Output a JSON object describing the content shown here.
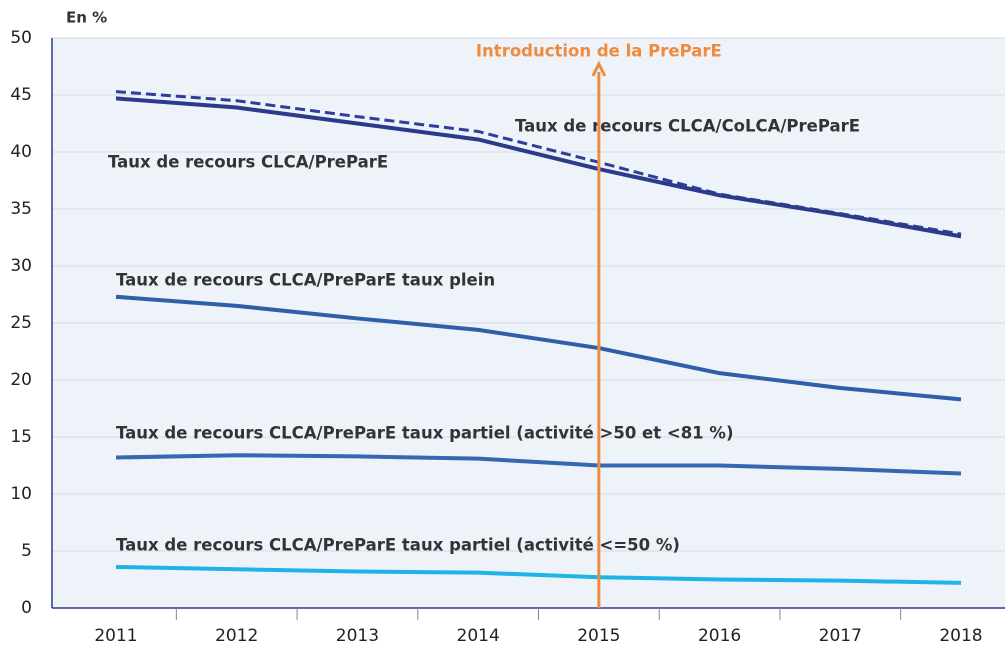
{
  "chart_data": {
    "type": "line",
    "y_label": "En %",
    "categories": [
      "2011",
      "2012",
      "2013",
      "2014",
      "2015",
      "2016",
      "2017",
      "2018"
    ],
    "series": [
      {
        "name": "Taux de recours CLCA/CoLCA/PreParE",
        "color": "#2e3f9b",
        "dashed": true,
        "values": [
          45.3,
          44.5,
          43.1,
          41.8,
          39.1,
          36.3,
          34.6,
          32.8
        ]
      },
      {
        "name": "Taux de recours CLCA/PreParE",
        "color": "#2b3a8c",
        "dashed": false,
        "values": [
          44.7,
          43.9,
          42.5,
          41.1,
          38.5,
          36.2,
          34.5,
          32.6
        ]
      },
      {
        "name": "Taux de recours CLCA/PreParE taux plein",
        "color": "#2f5fa8",
        "dashed": false,
        "values": [
          27.3,
          26.5,
          25.4,
          24.4,
          22.8,
          20.6,
          19.3,
          18.3
        ]
      },
      {
        "name": "Taux de recours CLCA/PreParE taux partiel (activité >50 et <81 %)",
        "color": "#3568b0",
        "dashed": false,
        "values": [
          13.2,
          13.4,
          13.3,
          13.1,
          12.5,
          12.5,
          12.2,
          11.8
        ]
      },
      {
        "name": "Taux de recours CLCA/PreParE taux partiel (activité <=50 %)",
        "color": "#1eb4e6",
        "dashed": false,
        "values": [
          3.6,
          3.4,
          3.2,
          3.1,
          2.7,
          2.5,
          2.4,
          2.2
        ]
      }
    ],
    "annotation": {
      "text": "Introduction de la PreParE",
      "category": "2015",
      "color": "#f08a3c"
    },
    "ylim": [
      0,
      50
    ],
    "yticks": [
      0,
      5,
      10,
      15,
      20,
      25,
      30,
      35,
      40,
      45,
      50
    ],
    "grid": true
  }
}
